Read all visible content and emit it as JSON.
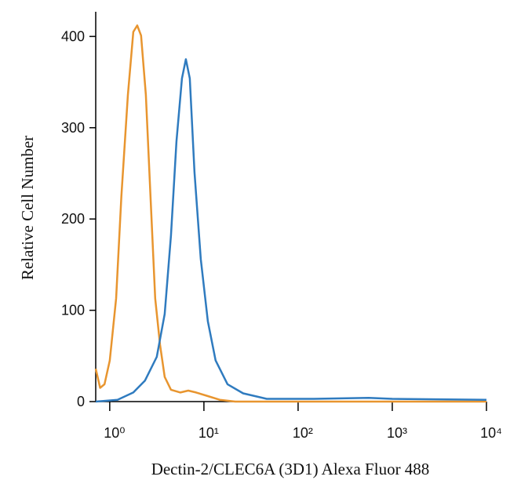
{
  "chart_data": {
    "type": "line",
    "x_label": "Dectin-2/CLEC6A (3D1) Alexa Fluor 488",
    "y_label": "Relative Cell Number",
    "x_scale": "log",
    "xlim": [
      0.71,
      10000
    ],
    "ylim": [
      0,
      427
    ],
    "xticks": [
      {
        "value": 1,
        "label": "10⁰"
      },
      {
        "value": 10,
        "label": "10¹"
      },
      {
        "value": 100,
        "label": "10²"
      },
      {
        "value": 1000,
        "label": "10³"
      },
      {
        "value": 10000,
        "label": "10⁴"
      }
    ],
    "yticks": [
      0,
      100,
      200,
      300,
      400
    ],
    "series": [
      {
        "color": "#e8952f",
        "x": [
          0.71,
          0.79,
          0.88,
          1,
          1.17,
          1.33,
          1.56,
          1.78,
          1.96,
          2.15,
          2.42,
          2.71,
          3.04,
          3.42,
          3.83,
          4.47,
          5.62,
          6.81,
          8.25,
          11,
          14.7,
          21.5,
          10000
        ],
        "values": [
          36,
          15,
          19,
          45,
          113,
          225,
          336,
          405,
          412,
          401,
          336,
          225,
          113,
          62,
          27,
          13,
          10,
          12,
          10,
          6,
          2,
          0,
          0
        ]
      },
      {
        "color": "#2f7bbf",
        "x": [
          0.71,
          1.21,
          1.78,
          2.37,
          3.16,
          3.83,
          4.47,
          5.11,
          5.84,
          6.43,
          7.08,
          7.94,
          9.26,
          11,
          13.3,
          17.8,
          26.1,
          46.4,
          147,
          562,
          1000,
          10000
        ],
        "values": [
          0,
          2,
          10,
          23,
          49,
          96,
          182,
          285,
          354,
          375,
          354,
          251,
          156,
          88,
          45,
          19,
          9,
          3,
          3,
          4,
          3,
          2
        ]
      }
    ]
  }
}
